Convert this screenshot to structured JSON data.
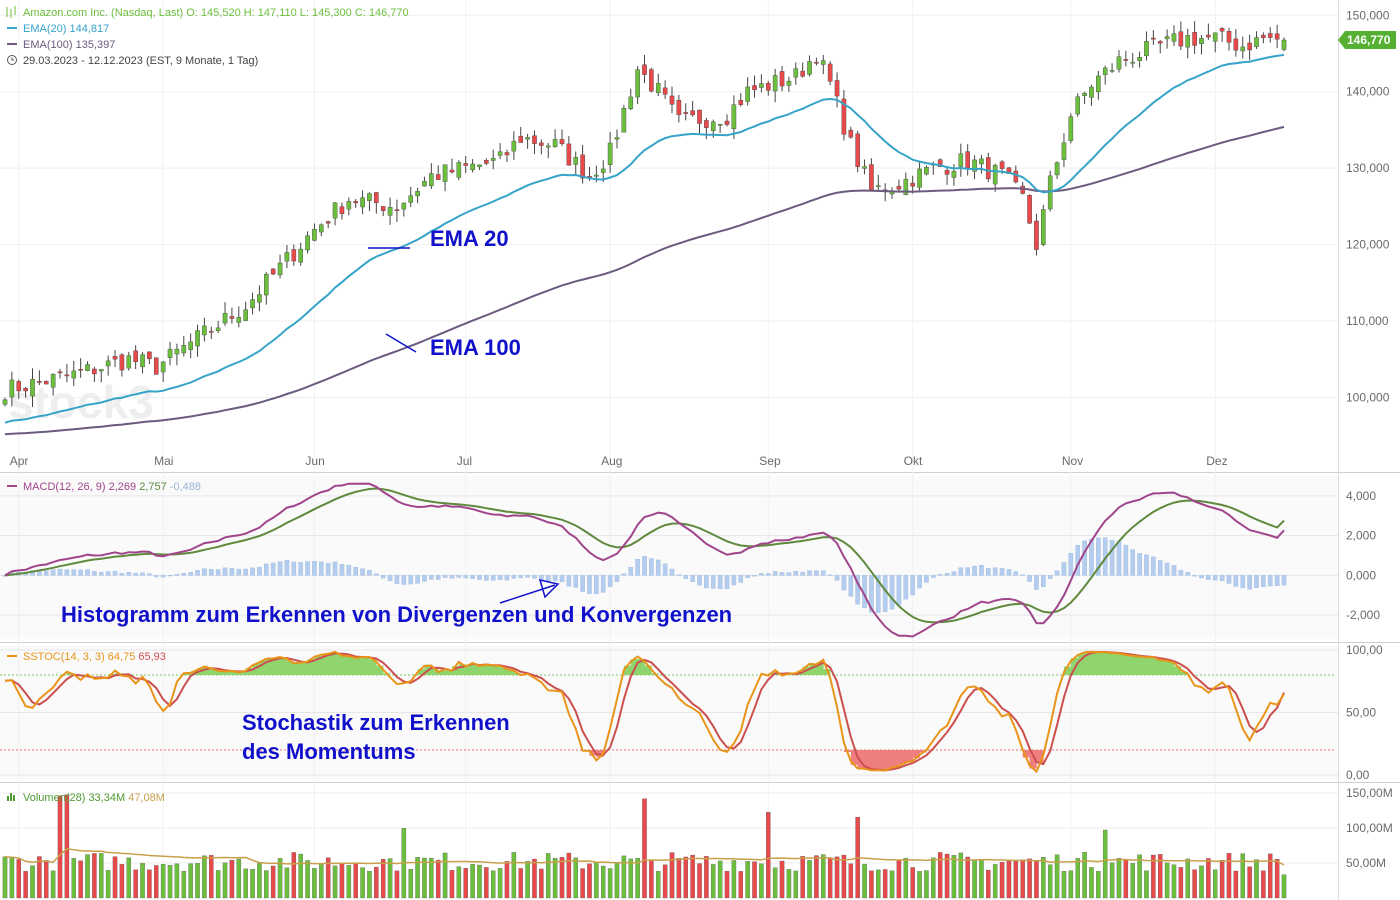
{
  "chart_data": [
    {
      "type": "candlestick",
      "legend": {
        "title": "Amazon.com Inc. (Nasdaq, Last)",
        "ohlc_text": "O: 145,520  H: 147,110  L: 145,300  C: 146,770",
        "ema20_label": "EMA(20)",
        "ema20_value": "144,817",
        "ema100_label": "EMA(100)",
        "ema100_value": "135,397",
        "range_text": "29.03.2023 - 12.12.2023   (EST, 9 Monate, 1 Tag)"
      },
      "last_price_label": "146,770",
      "ohlc_last": {
        "open": 145.52,
        "high": 147.11,
        "low": 145.3,
        "close": 146.77
      },
      "ylim": [
        93000,
        152000
      ],
      "y_ticks": [
        100000,
        110000,
        120000,
        130000,
        140000,
        150000
      ],
      "y_tick_labels": [
        "100,000",
        "110,000",
        "120,000",
        "130,000",
        "140,000",
        "150,000"
      ],
      "months": [
        "Apr",
        "Mai",
        "Jun",
        "Jul",
        "Aug",
        "Sep",
        "Okt",
        "Nov",
        "Dez"
      ],
      "month_start_index": [
        2,
        23,
        45,
        67,
        88,
        111,
        132,
        155,
        176
      ],
      "n_bars": 187,
      "close_path": {
        "index": [
          0,
          10,
          18,
          22,
          35,
          45,
          50,
          57,
          62,
          67,
          72,
          75,
          80,
          85,
          88,
          92,
          95,
          98,
          105,
          108,
          115,
          118,
          120,
          123,
          126,
          130,
          135,
          140,
          145,
          148,
          150,
          152,
          155,
          158,
          162,
          165,
          168,
          172,
          176,
          180,
          183,
          186
        ],
        "close": [
          101,
          103,
          105,
          104,
          112,
          122,
          126,
          125,
          129,
          130,
          131,
          134,
          133,
          129,
          132,
          143,
          140,
          136,
          137,
          140,
          142,
          145,
          141,
          133,
          127,
          128,
          130,
          131,
          129,
          126,
          120,
          128,
          137,
          141,
          144,
          145,
          146,
          147,
          147,
          146,
          147,
          146.77
        ]
      },
      "ema20_last": 144.817,
      "ema100_last": 135.397,
      "annotations": [
        "EMA 20",
        "EMA 100"
      ],
      "watermark": "stock3"
    },
    {
      "type": "line+bar",
      "legend": {
        "label": "MACD(12, 26, 9)",
        "macd": "2,269",
        "signal": "2,757",
        "histogram": "-0,488"
      },
      "ylim": [
        -3200,
        5000
      ],
      "y_ticks": [
        -2000,
        0,
        2000,
        4000
      ],
      "y_tick_labels": [
        "-2,000",
        "0,000",
        "2,000",
        "4,000"
      ],
      "annotation": "Histogramm zum Erkennen von Divergenzen und Konvergenzen"
    },
    {
      "type": "line",
      "legend": {
        "label": "SSTOC(14, 3, 3)",
        "k": "64,75",
        "d": "65,93"
      },
      "ylim": [
        0,
        100
      ],
      "levels": [
        20,
        80
      ],
      "y_ticks": [
        0,
        50,
        100
      ],
      "y_tick_labels": [
        "0,00",
        "50,00",
        "100,00"
      ],
      "annotation_line1": "Stochastik zum Erkennen",
      "annotation_line2": "des Momentums"
    },
    {
      "type": "bar",
      "legend": {
        "label": "Volumen(28)",
        "volume": "33,34M",
        "average": "47,08M"
      },
      "ylim": [
        0,
        150000000
      ],
      "y_ticks": [
        50000000,
        100000000,
        150000000
      ],
      "y_tick_labels": [
        "50,00M",
        "100,00M",
        "150,00M"
      ],
      "average_volume": 47080000,
      "last_volume": 33340000,
      "spike_index": [
        8,
        9,
        58,
        93,
        111,
        124,
        160
      ]
    }
  ],
  "colors": {
    "up": "#6cbf3c",
    "down": "#e8494b",
    "ema20": "#36a3c9",
    "ema100": "#6b5b7e",
    "macd": "#a0458c",
    "signal": "#5f8a3e",
    "histogram": "#b4cdee",
    "stoch_k": "#e89419",
    "stoch_d": "#cc4f4f",
    "annotation": "#1111cc",
    "price_label": "#55b032"
  }
}
